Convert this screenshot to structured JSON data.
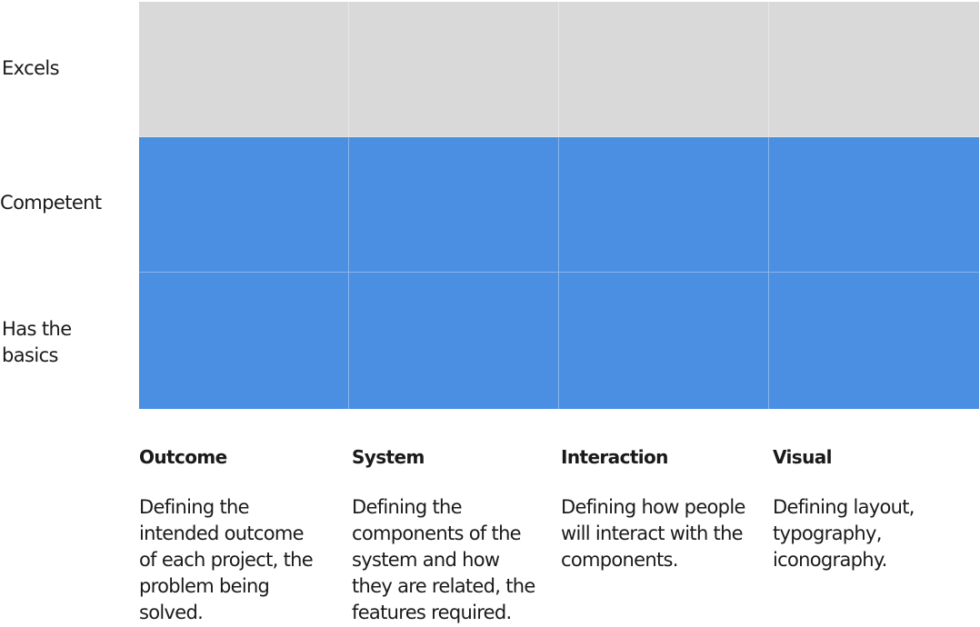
{
  "rows": [
    {
      "label": "Excels"
    },
    {
      "label": "Competent"
    },
    {
      "label_line1": "Has the",
      "label_line2": "basics"
    }
  ],
  "columns": [
    {
      "heading": "Outcome",
      "lines": [
        "Defining the",
        "intended outcome",
        "of each project, the",
        "problem being",
        "solved."
      ]
    },
    {
      "heading": "System",
      "lines": [
        "Defining the",
        "components of the",
        "system and how",
        "they are related, the",
        "features required."
      ]
    },
    {
      "heading": "Interaction",
      "lines": [
        "Defining how people",
        "will interact with the",
        "components."
      ]
    },
    {
      "heading": "Visual",
      "lines": [
        "Defining layout,",
        "typography,",
        "iconography."
      ]
    }
  ],
  "colors": {
    "top_row": "#d9d9d9",
    "filled_rows": "#4a8fe2",
    "text": "#1a1a1a"
  },
  "fill": {
    "Outcome": "Competent",
    "System": "Competent",
    "Interaction": "Competent",
    "Visual": "Competent"
  }
}
